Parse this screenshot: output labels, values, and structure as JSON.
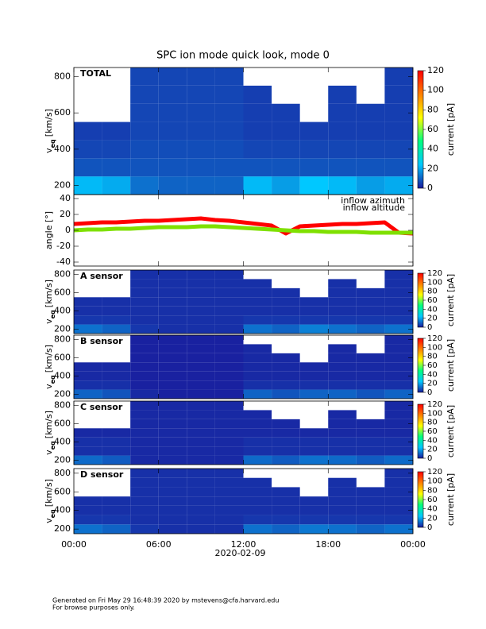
{
  "chart_data": [
    {
      "type": "heatmap",
      "title": "SPC ion mode quick look, mode 0",
      "label": "TOTAL",
      "ylabel": {
        "main": "v",
        "sub": "eq",
        "unit": "[km/s]"
      },
      "ylim": [
        150,
        850
      ],
      "yticks": [
        200,
        400,
        600,
        800
      ],
      "xbins": [
        0,
        2,
        4,
        6,
        8,
        10,
        12,
        14,
        16,
        18,
        20,
        22,
        24
      ],
      "ybins": [
        150,
        250,
        350,
        450,
        550,
        650,
        750,
        850
      ],
      "z": [
        [
          22,
          20,
          12,
          10,
          10,
          10,
          22,
          18,
          24,
          22,
          18,
          20
        ],
        [
          8,
          8,
          8,
          8,
          8,
          8,
          8,
          8,
          8,
          8,
          8,
          8
        ],
        [
          6,
          6,
          7,
          7,
          7,
          7,
          6,
          6,
          6,
          6,
          6,
          6
        ],
        [
          5,
          5,
          6,
          6,
          6,
          6,
          5,
          5,
          5,
          5,
          5,
          5
        ],
        [
          null,
          null,
          6,
          6,
          6,
          6,
          5,
          5,
          null,
          5,
          5,
          5
        ],
        [
          null,
          null,
          6,
          6,
          6,
          6,
          5,
          null,
          null,
          5,
          null,
          5
        ],
        [
          null,
          null,
          6,
          6,
          6,
          6,
          null,
          null,
          null,
          null,
          null,
          5
        ]
      ],
      "zlim": [
        0,
        120
      ],
      "zticks": [
        0,
        20,
        40,
        60,
        80,
        100,
        120
      ],
      "zlabel": "current [pA]",
      "colorscale": [
        "#1a1a9c",
        "#00c8ff",
        "#00ff80",
        "#ffff00",
        "#ff8000",
        "#ff0000"
      ]
    },
    {
      "type": "line",
      "ylabel": "angle [°]",
      "ylim": [
        -45,
        45
      ],
      "yticks": [
        -40,
        -20,
        0,
        20,
        40
      ],
      "x": [
        0,
        1,
        2,
        3,
        4,
        5,
        6,
        7,
        8,
        9,
        10,
        11,
        12,
        13,
        14,
        15,
        16,
        17,
        18,
        19,
        20,
        21,
        22,
        23,
        24
      ],
      "series": [
        {
          "name": "inflow azimuth",
          "color": "#ff0000",
          "values": [
            8,
            9,
            10,
            10,
            11,
            12,
            12,
            13,
            14,
            15,
            13,
            12,
            10,
            8,
            6,
            -4,
            5,
            6,
            7,
            8,
            8,
            9,
            10,
            -3,
            -4
          ]
        },
        {
          "name": "inflow altitude",
          "color": "#7fe000",
          "values": [
            0,
            1,
            1,
            2,
            2,
            3,
            4,
            4,
            4,
            5,
            5,
            4,
            3,
            2,
            1,
            0,
            -1,
            -1,
            -2,
            -2,
            -2,
            -3,
            -3,
            -3,
            -3
          ]
        }
      ]
    },
    {
      "type": "heatmap",
      "label": "A sensor",
      "ylabel": {
        "main": "v",
        "sub": "eq",
        "unit": "[km/s]"
      },
      "ylim": [
        150,
        850
      ],
      "yticks": [
        200,
        400,
        600,
        800
      ],
      "xbins": [
        0,
        2,
        4,
        6,
        8,
        10,
        12,
        14,
        16,
        18,
        20,
        22,
        24
      ],
      "ybins": [
        150,
        250,
        350,
        450,
        550,
        650,
        750,
        850
      ],
      "z": [
        [
          12,
          10,
          4,
          3,
          3,
          3,
          12,
          10,
          14,
          12,
          10,
          12
        ],
        [
          4,
          4,
          3,
          3,
          3,
          3,
          4,
          4,
          4,
          4,
          4,
          4
        ],
        [
          3,
          3,
          3,
          3,
          3,
          3,
          3,
          3,
          3,
          3,
          3,
          3
        ],
        [
          3,
          3,
          3,
          3,
          3,
          3,
          3,
          3,
          3,
          3,
          3,
          3
        ],
        [
          null,
          null,
          3,
          3,
          3,
          3,
          3,
          3,
          null,
          3,
          3,
          3
        ],
        [
          null,
          null,
          3,
          3,
          3,
          3,
          3,
          null,
          null,
          3,
          null,
          3
        ],
        [
          null,
          null,
          3,
          3,
          3,
          3,
          null,
          null,
          null,
          null,
          null,
          3
        ]
      ],
      "zlim": [
        0,
        120
      ],
      "zticks": [
        0,
        20,
        40,
        60,
        80,
        100,
        120
      ],
      "zlabel": "current [pA]",
      "colorscale": [
        "#1a1a9c",
        "#00c8ff",
        "#00ff80",
        "#ffff00",
        "#ff8000",
        "#ff0000"
      ]
    },
    {
      "type": "heatmap",
      "label": "B sensor",
      "ylabel": {
        "main": "v",
        "sub": "eq",
        "unit": "[km/s]"
      },
      "ylim": [
        150,
        850
      ],
      "yticks": [
        200,
        400,
        600,
        800
      ],
      "xbins": [
        0,
        2,
        4,
        6,
        8,
        10,
        12,
        14,
        16,
        18,
        20,
        22,
        24
      ],
      "ybins": [
        150,
        250,
        350,
        450,
        550,
        650,
        750,
        850
      ],
      "z": [
        [
          10,
          8,
          2,
          1,
          1,
          1,
          10,
          8,
          10,
          10,
          8,
          10
        ],
        [
          3,
          3,
          1,
          1,
          1,
          1,
          3,
          3,
          3,
          3,
          3,
          3
        ],
        [
          2,
          2,
          1,
          1,
          1,
          1,
          2,
          2,
          2,
          2,
          2,
          2
        ],
        [
          2,
          2,
          1,
          1,
          1,
          1,
          2,
          2,
          2,
          2,
          2,
          2
        ],
        [
          null,
          null,
          1,
          1,
          1,
          1,
          2,
          2,
          null,
          2,
          2,
          2
        ],
        [
          null,
          null,
          1,
          1,
          1,
          1,
          2,
          null,
          null,
          2,
          null,
          2
        ],
        [
          null,
          null,
          1,
          1,
          1,
          1,
          null,
          null,
          null,
          null,
          null,
          2
        ]
      ],
      "zlim": [
        0,
        120
      ],
      "zticks": [
        0,
        20,
        40,
        60,
        80,
        100,
        120
      ],
      "zlabel": "current [pA]",
      "colorscale": [
        "#1a1a9c",
        "#00c8ff",
        "#00ff80",
        "#ffff00",
        "#ff8000",
        "#ff0000"
      ]
    },
    {
      "type": "heatmap",
      "label": "C sensor",
      "ylabel": {
        "main": "v",
        "sub": "eq",
        "unit": "[km/s]"
      },
      "ylim": [
        150,
        850
      ],
      "yticks": [
        200,
        400,
        600,
        800
      ],
      "xbins": [
        0,
        2,
        4,
        6,
        8,
        10,
        12,
        14,
        16,
        18,
        20,
        22,
        24
      ],
      "ybins": [
        150,
        250,
        350,
        450,
        550,
        650,
        750,
        850
      ],
      "z": [
        [
          11,
          9,
          2,
          2,
          2,
          2,
          11,
          9,
          12,
          11,
          9,
          11
        ],
        [
          3,
          3,
          2,
          2,
          2,
          2,
          3,
          3,
          3,
          3,
          3,
          3
        ],
        [
          3,
          3,
          2,
          2,
          2,
          2,
          3,
          3,
          3,
          3,
          3,
          3
        ],
        [
          2,
          2,
          2,
          2,
          2,
          2,
          2,
          2,
          2,
          2,
          2,
          2
        ],
        [
          null,
          null,
          2,
          2,
          2,
          2,
          2,
          2,
          null,
          2,
          2,
          2
        ],
        [
          null,
          null,
          2,
          2,
          2,
          2,
          2,
          null,
          null,
          2,
          null,
          2
        ],
        [
          null,
          null,
          2,
          2,
          2,
          2,
          null,
          null,
          null,
          null,
          null,
          2
        ]
      ],
      "zlim": [
        0,
        120
      ],
      "zticks": [
        0,
        20,
        40,
        60,
        80,
        100,
        120
      ],
      "zlabel": "current [pA]",
      "colorscale": [
        "#1a1a9c",
        "#00c8ff",
        "#00ff80",
        "#ffff00",
        "#ff8000",
        "#ff0000"
      ]
    },
    {
      "type": "heatmap",
      "label": "D sensor",
      "ylabel": {
        "main": "v",
        "sub": "eq",
        "unit": "[km/s]"
      },
      "ylim": [
        150,
        850
      ],
      "yticks": [
        200,
        400,
        600,
        800
      ],
      "xbins": [
        0,
        2,
        4,
        6,
        8,
        10,
        12,
        14,
        16,
        18,
        20,
        22,
        24
      ],
      "ybins": [
        150,
        250,
        350,
        450,
        550,
        650,
        750,
        850
      ],
      "z": [
        [
          12,
          10,
          4,
          3,
          3,
          3,
          12,
          10,
          13,
          12,
          10,
          12
        ],
        [
          4,
          4,
          3,
          3,
          3,
          3,
          4,
          4,
          4,
          4,
          4,
          4
        ],
        [
          3,
          3,
          3,
          3,
          3,
          3,
          3,
          3,
          3,
          3,
          3,
          3
        ],
        [
          3,
          3,
          3,
          3,
          3,
          3,
          3,
          3,
          3,
          3,
          3,
          3
        ],
        [
          null,
          null,
          3,
          3,
          3,
          3,
          3,
          3,
          null,
          3,
          3,
          3
        ],
        [
          null,
          null,
          3,
          3,
          3,
          3,
          3,
          null,
          null,
          3,
          null,
          3
        ],
        [
          null,
          null,
          3,
          3,
          3,
          3,
          null,
          null,
          null,
          null,
          null,
          3
        ]
      ],
      "zlim": [
        0,
        120
      ],
      "zticks": [
        0,
        20,
        40,
        60,
        80,
        100,
        120
      ],
      "zlabel": "current [pA]",
      "colorscale": [
        "#1a1a9c",
        "#00c8ff",
        "#00ff80",
        "#ffff00",
        "#ff8000",
        "#ff0000"
      ],
      "xlim": [
        0,
        24
      ],
      "xticks": [
        {
          "value": 0,
          "label": "00:00"
        },
        {
          "value": 6,
          "label": "06:00"
        },
        {
          "value": 12,
          "label": "12:00"
        },
        {
          "value": 18,
          "label": "18:00"
        },
        {
          "value": 24,
          "label": "00:00"
        }
      ],
      "xlabel": "2020-02-09"
    }
  ],
  "footer": {
    "line1": "Generated on Fri May 29 16:48:39 2020 by mstevens@cfa.harvard.edu",
    "line2": "For browse purposes only."
  }
}
